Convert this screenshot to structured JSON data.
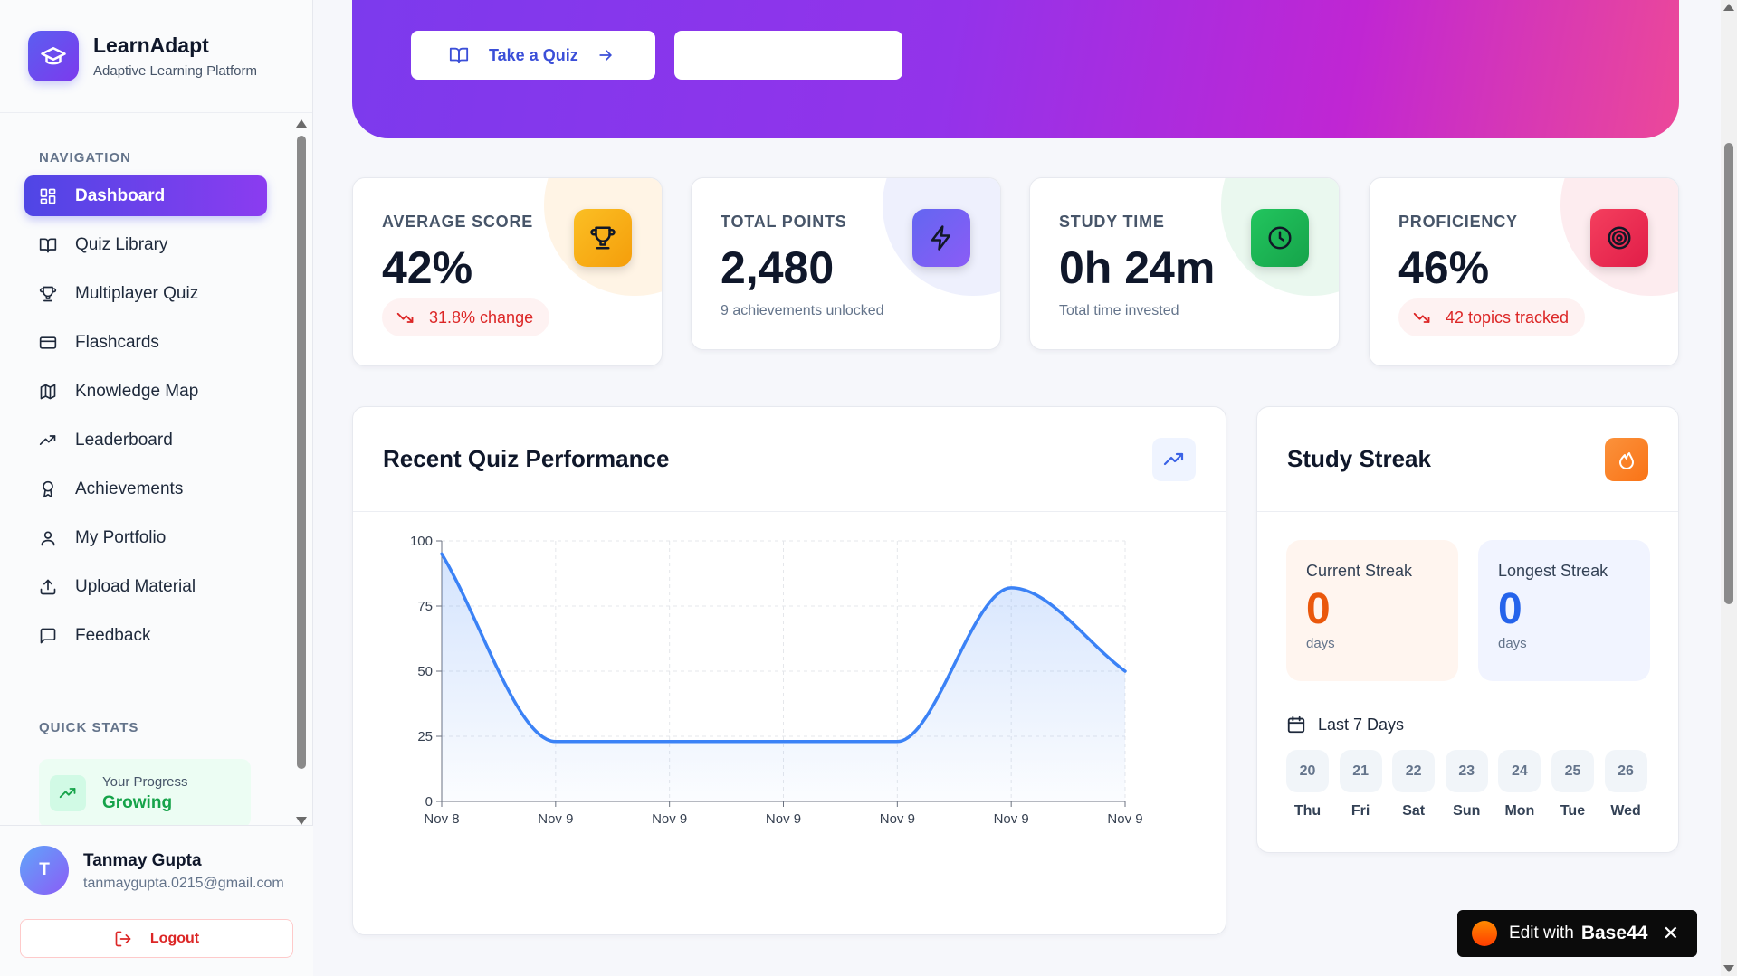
{
  "brand": {
    "title": "LearnAdapt",
    "subtitle": "Adaptive Learning Platform"
  },
  "sidebar": {
    "nav_label": "NAVIGATION",
    "items": [
      {
        "label": "Dashboard",
        "icon": "grid-icon",
        "active": true
      },
      {
        "label": "Quiz Library",
        "icon": "book-open-icon"
      },
      {
        "label": "Multiplayer Quiz",
        "icon": "trophy-icon"
      },
      {
        "label": "Flashcards",
        "icon": "card-icon"
      },
      {
        "label": "Knowledge Map",
        "icon": "map-icon"
      },
      {
        "label": "Leaderboard",
        "icon": "trending-up-icon"
      },
      {
        "label": "Achievements",
        "icon": "award-icon"
      },
      {
        "label": "My Portfolio",
        "icon": "user-icon"
      },
      {
        "label": "Upload Material",
        "icon": "upload-icon"
      },
      {
        "label": "Feedback",
        "icon": "message-icon"
      }
    ],
    "quick_stats_label": "QUICK STATS",
    "progress": {
      "caption": "Your Progress",
      "value": "Growing"
    }
  },
  "user": {
    "initial": "T",
    "name": "Tanmay Gupta",
    "email": "tanmaygupta.0215@gmail.com",
    "logout_label": "Logout"
  },
  "hero": {
    "quiz_button": "Take a Quiz",
    "second_button": ""
  },
  "stats": [
    {
      "title": "AVERAGE SCORE",
      "value": "42%",
      "pill": "31.8% change",
      "icon": "trophy-icon",
      "color": "#f59e0b"
    },
    {
      "title": "TOTAL POINTS",
      "value": "2,480",
      "note": "9 achievements unlocked",
      "icon": "zap-icon",
      "color": "#6366f1"
    },
    {
      "title": "STUDY TIME",
      "value": "0h 24m",
      "note": "Total time invested",
      "icon": "clock-icon",
      "color": "#22c55e"
    },
    {
      "title": "PROFICIENCY",
      "value": "46%",
      "pill": "42 topics tracked",
      "icon": "target-icon",
      "color": "#ef4444"
    }
  ],
  "performance": {
    "title": "Recent Quiz Performance",
    "chart_data": {
      "type": "area",
      "categories": [
        "Nov 8",
        "Nov 9",
        "Nov 9",
        "Nov 9",
        "Nov 9",
        "Nov 9",
        "Nov 9"
      ],
      "values": [
        95,
        23,
        23,
        23,
        23,
        82,
        50
      ],
      "ylim": [
        0,
        100
      ],
      "yticks": [
        "0",
        "25",
        "50",
        "75",
        "100"
      ],
      "line_color": "#3b82f6",
      "grid": true
    }
  },
  "streak": {
    "title": "Study Streak",
    "current": {
      "caption": "Current Streak",
      "value": "0",
      "unit": "days"
    },
    "longest": {
      "caption": "Longest Streak",
      "value": "0",
      "unit": "days"
    },
    "last7_label": "Last 7 Days",
    "days": [
      {
        "num": "20",
        "name": "Thu"
      },
      {
        "num": "21",
        "name": "Fri"
      },
      {
        "num": "22",
        "name": "Sat"
      },
      {
        "num": "23",
        "name": "Sun"
      },
      {
        "num": "24",
        "name": "Mon"
      },
      {
        "num": "25",
        "name": "Tue"
      },
      {
        "num": "26",
        "name": "Wed"
      }
    ]
  },
  "badge": {
    "text": "Edit with",
    "brand": "Base44",
    "close": "✕"
  }
}
